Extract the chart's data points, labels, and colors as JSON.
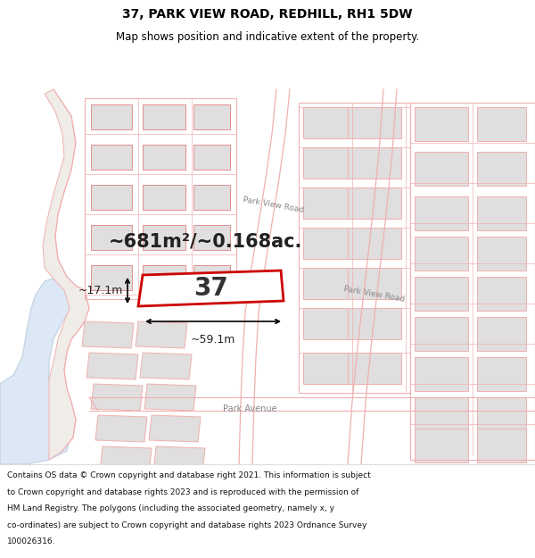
{
  "title_line1": "37, PARK VIEW ROAD, REDHILL, RH1 5DW",
  "title_line2": "Map shows position and indicative extent of the property.",
  "area_text": "~681m²/~0.168ac.",
  "property_label": "37",
  "dim_width": "~59.1m",
  "dim_height": "~17.1m",
  "property_edge": "#cc0000",
  "road_color": "#f0b0b0",
  "road_fill": "#ffffff",
  "building_fill": "#e0dede",
  "building_edge": "#e08080",
  "water_fill": "#dce8f5",
  "water_edge": "#c0d0e0",
  "map_bg": "#f8f5f2",
  "street_label_parkview": "Park View Road",
  "street_label_parkave": "Park Avenue",
  "footer_lines": [
    "Contains OS data © Crown copyright and database right 2021. This information is subject",
    "to Crown copyright and database rights 2023 and is reproduced with the permission of",
    "HM Land Registry. The polygons (including the associated geometry, namely x, y",
    "co-ordinates) are subject to Crown copyright and database rights 2023 Ordnance Survey",
    "100026316."
  ]
}
